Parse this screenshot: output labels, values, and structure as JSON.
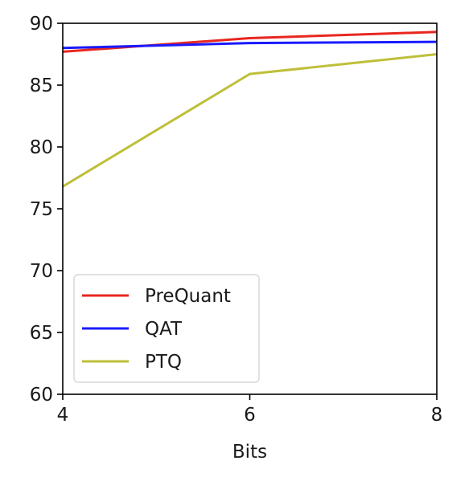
{
  "chart_data": {
    "type": "line",
    "title": "",
    "xlabel": "Bits",
    "ylabel": "",
    "x": [
      4,
      6,
      8
    ],
    "xlim": [
      4,
      8
    ],
    "ylim": [
      60,
      90
    ],
    "xticks": [
      "4",
      "6",
      "8"
    ],
    "yticks": [
      "60",
      "65",
      "70",
      "75",
      "80",
      "85",
      "90"
    ],
    "grid": false,
    "legend_position": "lower-left",
    "series": [
      {
        "name": "PreQuant",
        "color": "#e8271f",
        "values": [
          87.7,
          88.8,
          89.3
        ]
      },
      {
        "name": "QAT",
        "color": "#1a1aff",
        "values": [
          88.0,
          88.4,
          88.5
        ]
      },
      {
        "name": "PTQ",
        "color": "#bfbf3a",
        "values": [
          76.8,
          85.9,
          87.5
        ]
      }
    ]
  }
}
